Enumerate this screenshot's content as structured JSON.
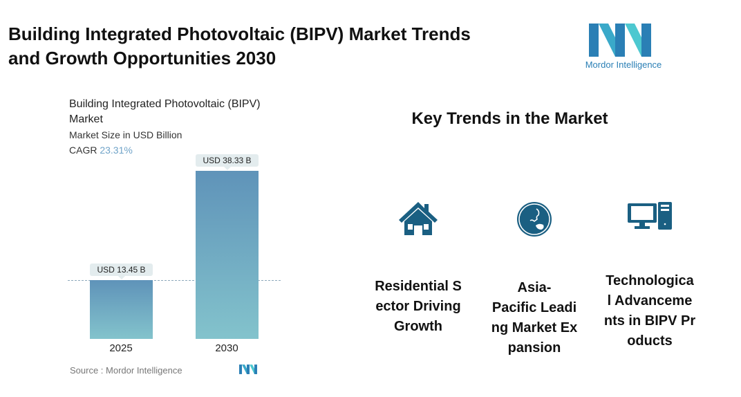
{
  "header": {
    "title_line1": "Building Integrated Photovoltaic (BIPV) Market Trends",
    "title_line2": "and Growth Opportunities 2030",
    "logo_text": "Mordor Intelligence"
  },
  "chart_data": {
    "type": "bar",
    "title": "Building Integrated Photovoltaic (BIPV) Market",
    "subtitle": "Market Size in USD Billion",
    "cagr_label": "CAGR",
    "cagr_value": "23.31%",
    "categories": [
      "2025",
      "2030"
    ],
    "values": [
      13.45,
      38.33
    ],
    "data_labels": [
      "USD 13.45 B",
      "USD 38.33 B"
    ],
    "ylim": [
      0,
      38.33
    ],
    "grid": false,
    "source": "Source :  Mordor Intelligence",
    "colors": {
      "bar_top": "#5f93b9",
      "bar_bottom": "#83c3cc"
    }
  },
  "trends": {
    "heading": "Key Trends in the Market",
    "icon_color": "#1a5f82",
    "items": [
      {
        "icon": "house-icon",
        "lines": [
          "Residential S",
          "ector Driving",
          "Growth"
        ]
      },
      {
        "icon": "globe-icon",
        "lines": [
          "Asia-",
          "Pacific Leadi",
          "ng Market Ex",
          "pansion"
        ]
      },
      {
        "icon": "computer-icon",
        "lines": [
          "Technologica",
          "l Advanceme",
          "nts in BIPV Pr",
          "oducts"
        ]
      }
    ]
  }
}
